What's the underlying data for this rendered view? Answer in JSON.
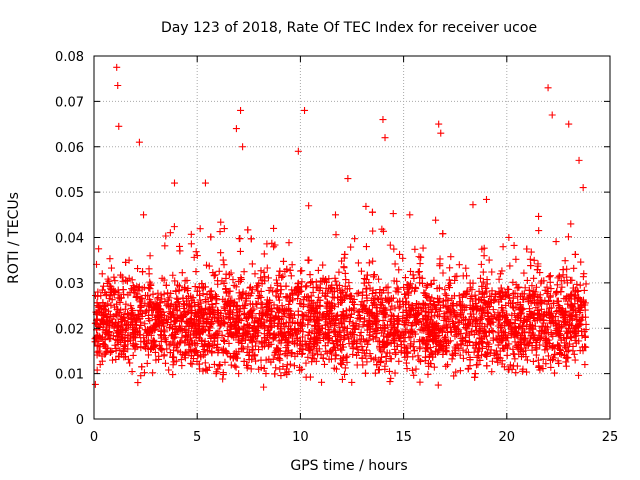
{
  "chart_data": {
    "type": "scatter",
    "title": "Day 123 of 2018, Rate Of TEC Index for receiver ucoe",
    "xlabel": "GPS time / hours",
    "ylabel": "ROTI / TECUs",
    "xlim": [
      0,
      25
    ],
    "ylim": [
      0,
      0.08
    ],
    "xticks": [
      "0",
      "5",
      "10",
      "15",
      "20",
      "25"
    ],
    "yticks": [
      "0",
      "0.01",
      "0.02",
      "0.03",
      "0.04",
      "0.05",
      "0.06",
      "0.07",
      "0.08"
    ],
    "grid": true,
    "legend": "none",
    "marker": "plus",
    "color": "#ff0000",
    "series": [
      {
        "x": [
          0.1,
          0.2,
          0.3,
          0.4,
          0.6,
          0.8,
          1.0,
          1.1,
          1.15,
          1.2,
          1.3,
          1.5,
          1.7,
          1.9,
          2.1,
          2.2,
          2.4,
          2.6,
          2.8,
          3.0,
          3.3,
          3.6,
          3.9,
          4.2,
          4.5,
          4.8,
          5.1,
          5.4,
          5.7,
          6.0,
          6.3,
          6.6,
          6.9,
          7.1,
          7.2,
          7.3,
          7.5,
          7.8,
          8.1,
          8.4,
          8.7,
          9.0,
          9.3,
          9.6,
          9.9,
          10.2,
          10.4,
          10.5,
          10.8,
          11.1,
          11.4,
          11.7,
          12.0,
          12.3,
          12.6,
          12.9,
          13.2,
          13.5,
          13.8,
          14.0,
          14.1,
          14.4,
          14.7,
          15.0,
          15.3,
          15.6,
          15.9,
          16.2,
          16.5,
          16.7,
          16.8,
          17.1,
          17.4,
          17.7,
          18.0,
          18.3,
          18.6,
          18.9,
          19.2,
          19.5,
          19.8,
          20.1,
          20.4,
          20.7,
          21.0,
          21.3,
          21.6,
          21.9,
          22.0,
          22.2,
          22.5,
          22.8,
          23.0,
          23.1,
          23.3,
          23.5,
          23.7,
          23.8
        ],
        "y": [
          0.018,
          0.025,
          0.012,
          0.032,
          0.021,
          0.015,
          0.028,
          0.0775,
          0.0735,
          0.0645,
          0.022,
          0.018,
          0.035,
          0.014,
          0.027,
          0.061,
          0.045,
          0.019,
          0.024,
          0.013,
          0.031,
          0.022,
          0.052,
          0.017,
          0.026,
          0.015,
          0.029,
          0.052,
          0.021,
          0.011,
          0.034,
          0.019,
          0.064,
          0.068,
          0.06,
          0.025,
          0.014,
          0.032,
          0.021,
          0.018,
          0.042,
          0.011,
          0.027,
          0.034,
          0.059,
          0.068,
          0.047,
          0.022,
          0.015,
          0.031,
          0.019,
          0.045,
          0.012,
          0.053,
          0.024,
          0.017,
          0.038,
          0.021,
          0.013,
          0.066,
          0.062,
          0.022,
          0.016,
          0.029,
          0.045,
          0.011,
          0.031,
          0.019,
          0.025,
          0.065,
          0.063,
          0.022,
          0.014,
          0.034,
          0.018,
          0.027,
          0.012,
          0.036,
          0.021,
          0.015,
          0.028,
          0.04,
          0.017,
          0.024,
          0.013,
          0.031,
          0.022,
          0.016,
          0.073,
          0.067,
          0.026,
          0.014,
          0.065,
          0.043,
          0.019,
          0.057,
          0.051,
          0.024
        ]
      }
    ]
  }
}
